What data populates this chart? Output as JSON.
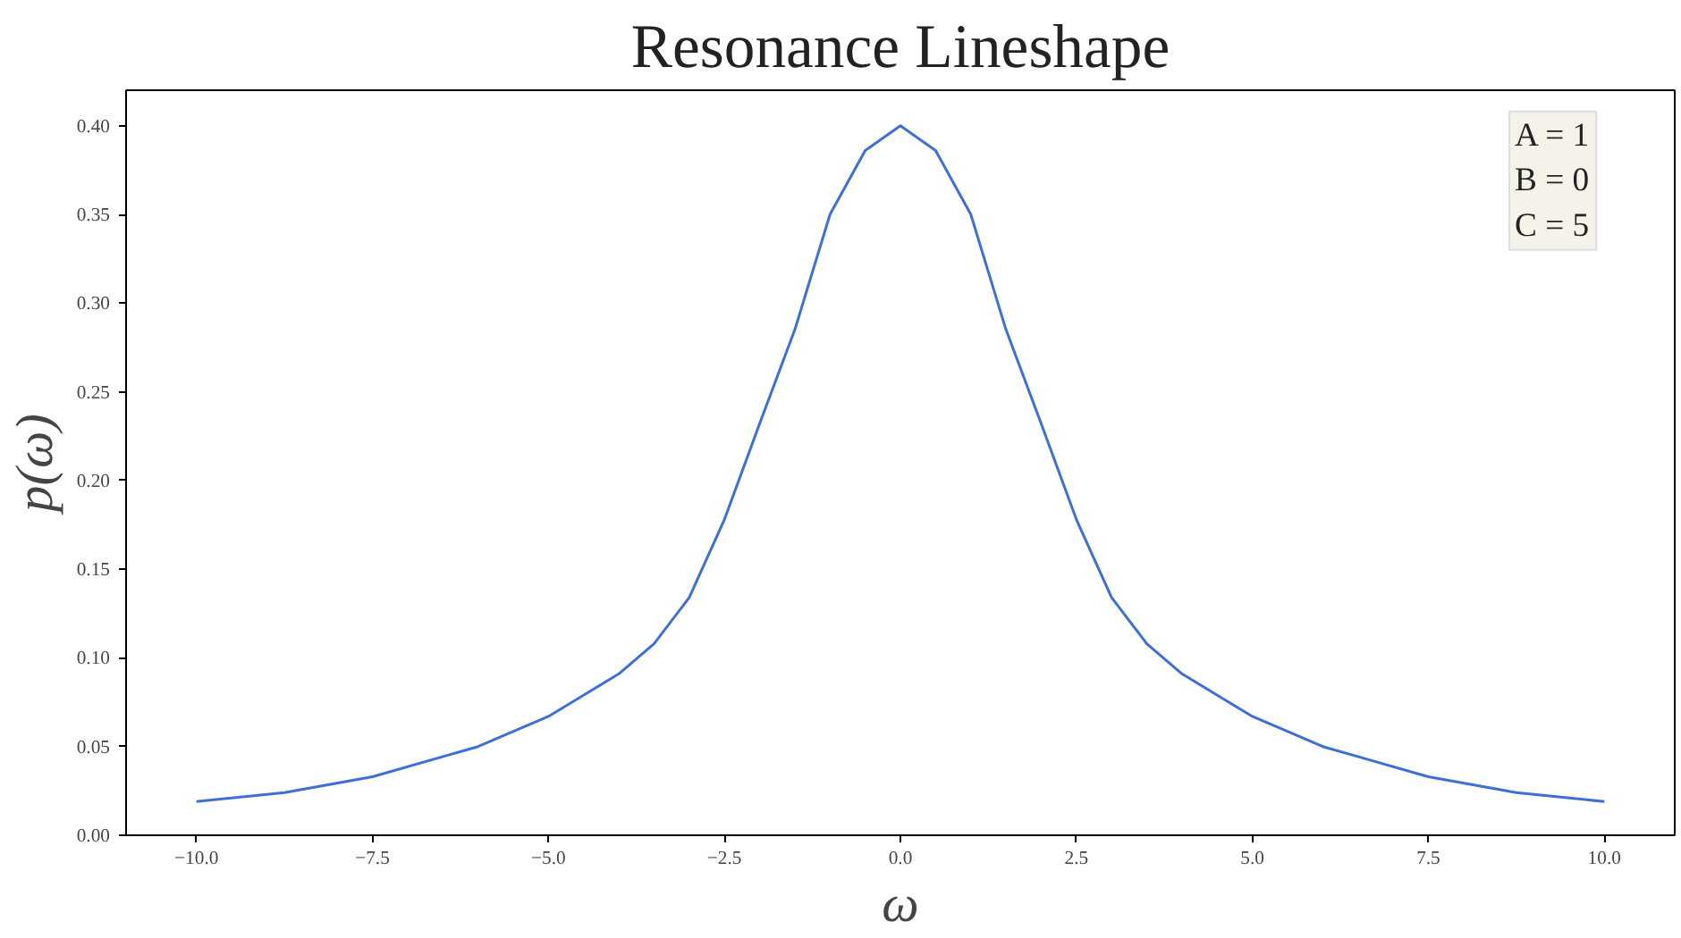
{
  "chart_data": {
    "type": "line",
    "title": "Resonance Lineshape",
    "xlabel": "ω",
    "ylabel": "p(ω)",
    "annotations": [
      "A = 1\nB = 0\nC = 5"
    ],
    "x": [
      -10,
      -8.75,
      -7.5,
      -6,
      -5,
      -4,
      -3.5,
      -3,
      -2.5,
      -2,
      -1.5,
      -1,
      -0.5,
      0,
      0.5,
      1,
      1.5,
      2,
      2.5,
      3,
      3.5,
      4,
      5,
      6,
      7.5,
      8.75,
      10
    ],
    "series": [
      {
        "color": "#3e6fd6",
        "values": [
          0.019,
          0.024,
          0.033,
          0.05,
          0.067,
          0.091,
          0.108,
          0.134,
          0.178,
          0.232,
          0.285,
          0.35,
          0.386,
          0.4,
          0.386,
          0.35,
          0.285,
          0.232,
          0.178,
          0.134,
          0.108,
          0.091,
          0.067,
          0.05,
          0.033,
          0.024,
          0.019
        ]
      }
    ],
    "xlim": [
      -11,
      11
    ],
    "ylim": [
      0,
      0.42
    ],
    "xticks": [
      {
        "value": -10,
        "label": "−10.0"
      },
      {
        "value": -7.5,
        "label": "−7.5"
      },
      {
        "value": -5,
        "label": "−5.0"
      },
      {
        "value": -2.5,
        "label": "−2.5"
      },
      {
        "value": 0,
        "label": "0.0"
      },
      {
        "value": 2.5,
        "label": "2.5"
      },
      {
        "value": 5,
        "label": "5.0"
      },
      {
        "value": 7.5,
        "label": "7.5"
      },
      {
        "value": 10,
        "label": "10.0"
      }
    ],
    "yticks": [
      {
        "value": 0,
        "label": "0.00"
      },
      {
        "value": 0.05,
        "label": "0.05"
      },
      {
        "value": 0.1,
        "label": "0.10"
      },
      {
        "value": 0.15,
        "label": "0.15"
      },
      {
        "value": 0.2,
        "label": "0.20"
      },
      {
        "value": 0.25,
        "label": "0.25"
      },
      {
        "value": 0.3,
        "label": "0.30"
      },
      {
        "value": 0.35,
        "label": "0.35"
      },
      {
        "value": 0.4,
        "label": "0.40"
      }
    ],
    "grid": false,
    "marker": "none",
    "line_style": "solid"
  }
}
